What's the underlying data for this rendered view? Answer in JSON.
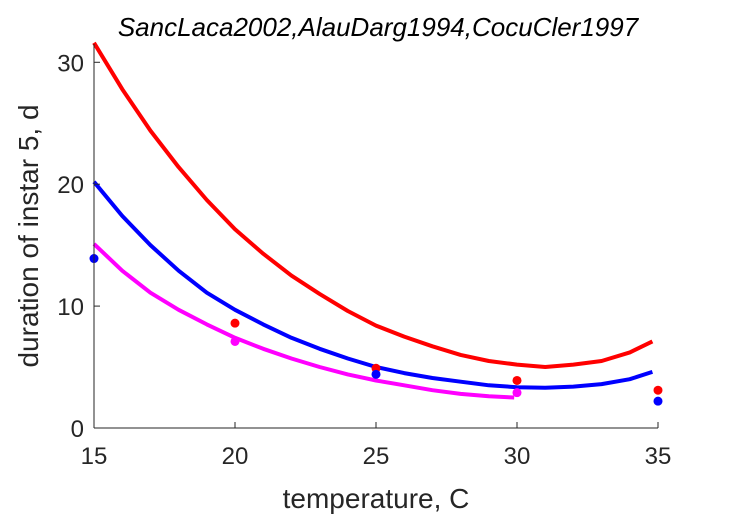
{
  "chart_data": {
    "type": "line",
    "title": "SancLaca2002,AlauDarg1994,CocuCler1997",
    "xlabel": "temperature, C",
    "ylabel": "duration of instar 5, d",
    "xlim": [
      15,
      35
    ],
    "ylim": [
      0,
      31.5
    ],
    "xticks": [
      15,
      20,
      25,
      30,
      35
    ],
    "yticks": [
      0,
      10,
      20,
      30
    ],
    "grid": false,
    "axis_color": "#262626",
    "series": [
      {
        "color": "#ff0000",
        "curve": {
          "x": [
            15,
            16,
            17,
            18,
            19,
            20,
            21,
            22,
            23,
            24,
            25,
            26,
            27,
            28,
            29,
            30,
            31,
            32,
            33,
            34,
            34.8
          ],
          "y": [
            31.6,
            27.8,
            24.4,
            21.4,
            18.7,
            16.3,
            14.3,
            12.5,
            11.0,
            9.6,
            8.4,
            7.5,
            6.7,
            6.0,
            5.5,
            5.2,
            5.0,
            5.2,
            5.5,
            6.2,
            7.1
          ]
        },
        "points": {
          "x": [
            20,
            25,
            30,
            35
          ],
          "y": [
            8.6,
            4.9,
            3.9,
            3.1
          ]
        }
      },
      {
        "color": "#0000ff",
        "curve": {
          "x": [
            15,
            16,
            17,
            18,
            19,
            20,
            21,
            22,
            23,
            24,
            25,
            26,
            27,
            28,
            29,
            30,
            31,
            32,
            33,
            34,
            34.8
          ],
          "y": [
            20.2,
            17.4,
            15.0,
            12.9,
            11.1,
            9.7,
            8.5,
            7.4,
            6.5,
            5.7,
            5.0,
            4.5,
            4.1,
            3.8,
            3.5,
            3.35,
            3.3,
            3.4,
            3.6,
            4.0,
            4.6
          ]
        },
        "points": {
          "x": [
            15,
            25,
            35
          ],
          "y": [
            13.9,
            4.4,
            2.2
          ]
        }
      },
      {
        "color": "#ff00ff",
        "curve": {
          "x": [
            15,
            16,
            17,
            18,
            19,
            20,
            21,
            22,
            23,
            24,
            25,
            26,
            27,
            28,
            29,
            29.9
          ],
          "y": [
            15.1,
            12.9,
            11.1,
            9.7,
            8.5,
            7.4,
            6.5,
            5.7,
            5.0,
            4.4,
            3.9,
            3.5,
            3.1,
            2.8,
            2.6,
            2.5
          ]
        },
        "points": {
          "x": [
            20,
            30
          ],
          "y": [
            7.1,
            2.9
          ]
        }
      }
    ]
  }
}
